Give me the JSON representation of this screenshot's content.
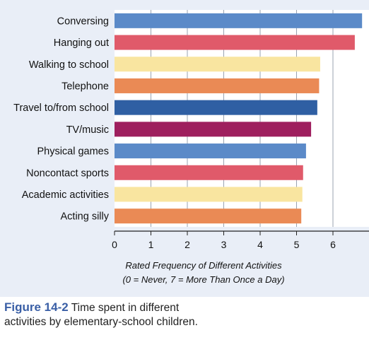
{
  "chart_data": {
    "type": "bar",
    "orientation": "horizontal",
    "categories": [
      "Conversing",
      "Hanging out",
      "Walking to school",
      "Telephone",
      "Travel to/from school",
      "TV/music",
      "Physical games",
      "Noncontact sports",
      "Academic activities",
      "Acting silly"
    ],
    "values": [
      6.8,
      6.6,
      5.65,
      5.62,
      5.57,
      5.4,
      5.26,
      5.18,
      5.16,
      5.13
    ],
    "colors": [
      "#5b8ac8",
      "#e05a6a",
      "#f9e5a0",
      "#ea8a55",
      "#2f5fa3",
      "#9e1f5e",
      "#5b8ac8",
      "#e05a6a",
      "#f9e5a0",
      "#ea8a55"
    ],
    "xlim": [
      0,
      7
    ],
    "xticks": [
      "0",
      "1",
      "2",
      "3",
      "4",
      "5",
      "6"
    ],
    "xlabel_line1": "Rated Frequency of Different Activities",
    "xlabel_line2": "(0 = Never,  7 = More Than Once a Day)",
    "grid": true
  },
  "caption": {
    "label": "Figure 14-2",
    "text": "Time spent in different activities by elementary-school children."
  }
}
